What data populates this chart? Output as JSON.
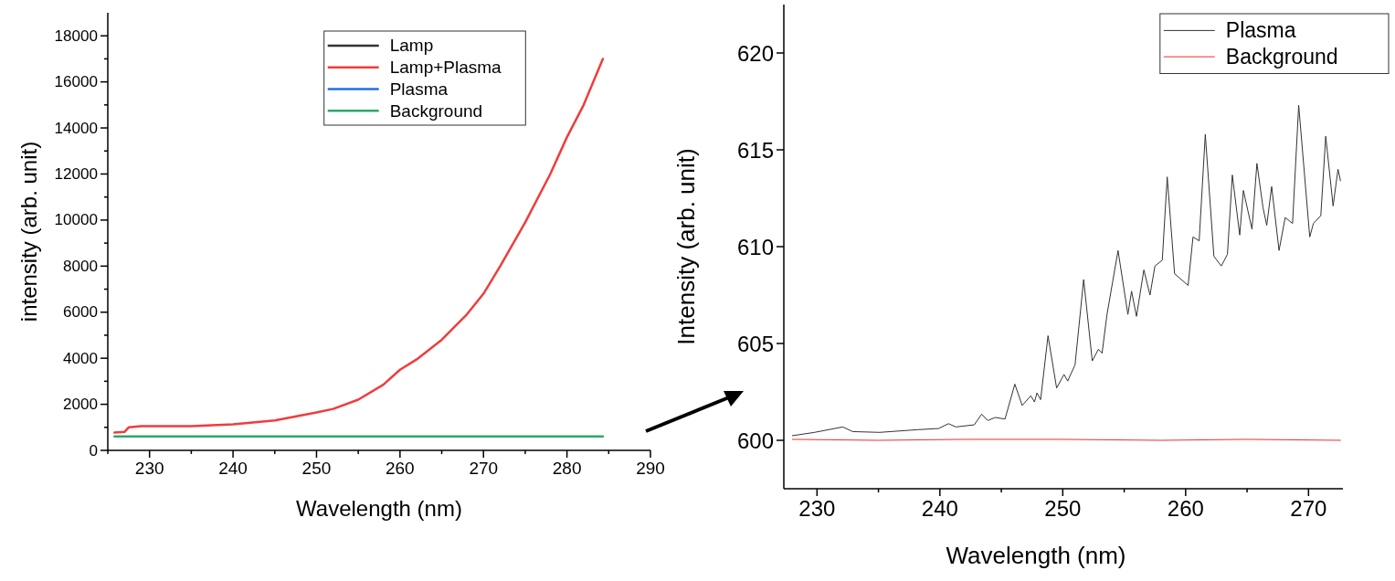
{
  "chart_data": [
    {
      "type": "line",
      "xlabel": "Wavelength (nm)",
      "ylabel": "intensity (arb. unit)",
      "xlim": [
        225,
        290
      ],
      "ylim": [
        0,
        19000
      ],
      "xticks": [
        {
          "value": 225,
          "label": null
        },
        230,
        {
          "value": 235,
          "label": null
        },
        240,
        {
          "value": 245,
          "label": null
        },
        250,
        {
          "value": 255,
          "label": null
        },
        260,
        {
          "value": 265,
          "label": null
        },
        270,
        {
          "value": 275,
          "label": null
        },
        280,
        {
          "value": 285,
          "label": null
        },
        290
      ],
      "yticks": [
        0,
        {
          "value": 1000,
          "label": null
        },
        2000,
        {
          "value": 3000,
          "label": null
        },
        4000,
        {
          "value": 5000,
          "label": null
        },
        6000,
        {
          "value": 7000,
          "label": null
        },
        8000,
        {
          "value": 9000,
          "label": null
        },
        10000,
        {
          "value": 11000,
          "label": null
        },
        12000,
        {
          "value": 13000,
          "label": null
        },
        14000,
        {
          "value": 15000,
          "label": null
        },
        16000,
        {
          "value": 17000,
          "label": null
        },
        18000
      ],
      "legend": "top",
      "grid": false,
      "series": [
        {
          "name": "Lamp",
          "color": "#333333"
        },
        {
          "name": "Lamp+Plasma",
          "color": "#f03c3c",
          "x": [
            225.8,
            227,
            227.5,
            229,
            235,
            240,
            245,
            250,
            252,
            255,
            258,
            260,
            262,
            265,
            268,
            270,
            272,
            275,
            278,
            280,
            282,
            284.3
          ],
          "values": [
            770,
            800,
            1000,
            1050,
            1050,
            1130,
            1300,
            1650,
            1800,
            2200,
            2850,
            3500,
            3950,
            4800,
            5900,
            6800,
            8000,
            9900,
            12000,
            13600,
            15000,
            17000
          ]
        },
        {
          "name": "Plasma",
          "color": "#1f6fe5"
        },
        {
          "name": "Background",
          "color": "#2ca86a",
          "x": [
            225.8,
            284.3
          ],
          "values": [
            600,
            600
          ]
        }
      ]
    },
    {
      "type": "line",
      "xlabel": "Wavelength (nm)",
      "ylabel": "Intensity (arb. unit)",
      "xlim": [
        227.3,
        272.8
      ],
      "ylim": [
        597.5,
        622.5
      ],
      "xticks": [
        230,
        {
          "value": 235,
          "label": null
        },
        240,
        {
          "value": 245,
          "label": null
        },
        250,
        {
          "value": 255,
          "label": null
        },
        260,
        {
          "value": 265,
          "label": null
        },
        270
      ],
      "yticks": [
        600,
        605,
        610,
        615,
        620
      ],
      "legend": "top right",
      "grid": false,
      "series": [
        {
          "name": "Plasma",
          "color": "#333333",
          "x": [
            228.0,
            229.8,
            232.1,
            232.9,
            235.1,
            238.2,
            239.9,
            240.7,
            241.3,
            242.8,
            243.4,
            243.9,
            244.5,
            245.3,
            246.1,
            246.7,
            247.4,
            247.7,
            247.9,
            248.2,
            248.8,
            249.5,
            250.1,
            250.4,
            251.0,
            251.7,
            252.4,
            252.9,
            253.2,
            253.6,
            254.5,
            255.3,
            255.6,
            256.0,
            256.6,
            257.1,
            257.5,
            258.1,
            258.5,
            259.1,
            260.2,
            260.6,
            261.1,
            261.6,
            262.3,
            262.9,
            263.4,
            263.8,
            264.4,
            264.7,
            265.4,
            265.8,
            266.3,
            266.6,
            267.0,
            267.6,
            268.1,
            268.7,
            269.2,
            270.1,
            270.4,
            271.0,
            271.4,
            272.0,
            272.4,
            272.6
          ],
          "values": [
            600.24,
            600.41,
            600.69,
            600.45,
            600.41,
            600.55,
            600.61,
            600.86,
            600.69,
            600.8,
            601.35,
            601.02,
            601.18,
            601.1,
            602.9,
            601.8,
            602.3,
            601.98,
            602.45,
            602.1,
            605.4,
            602.7,
            603.4,
            603.06,
            603.9,
            608.3,
            604.1,
            604.7,
            604.5,
            606.5,
            609.8,
            606.5,
            607.7,
            606.4,
            608.8,
            607.5,
            609.0,
            609.3,
            613.6,
            608.6,
            608.0,
            610.5,
            610.3,
            615.8,
            609.5,
            609.0,
            609.6,
            613.7,
            610.6,
            612.9,
            610.9,
            614.3,
            612.0,
            611.1,
            613.1,
            609.8,
            611.5,
            611.2,
            617.3,
            610.5,
            611.2,
            611.6,
            615.7,
            612.1,
            614.0,
            613.4
          ]
        },
        {
          "name": "Background",
          "color": "#e8302a",
          "x": [
            228.0,
            235,
            242,
            250,
            258,
            265,
            272.6
          ],
          "values": [
            600.05,
            600.0,
            600.05,
            600.05,
            600.0,
            600.05,
            600.0
          ]
        }
      ]
    }
  ]
}
